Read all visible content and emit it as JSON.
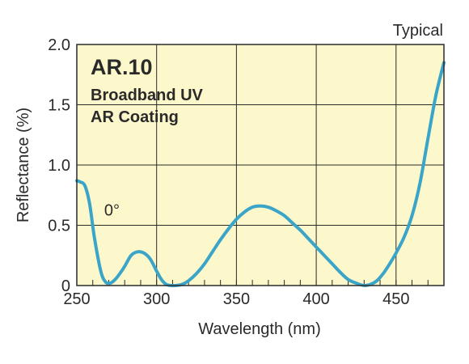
{
  "chart_data": {
    "type": "line",
    "corner_note": "Typical",
    "title": "AR.10",
    "subtitle_lines": [
      "Broadband UV",
      "AR Coating"
    ],
    "xlabel": "Wavelength (nm)",
    "ylabel": "Reflectance (%)",
    "xlim": [
      250,
      480
    ],
    "ylim": [
      0,
      2.0
    ],
    "x_ticks": [
      250,
      300,
      350,
      400,
      450
    ],
    "y_ticks": [
      0,
      0.5,
      1.0,
      1.5,
      2.0
    ],
    "x_tick_labels": [
      "250",
      "300",
      "350",
      "400",
      "450"
    ],
    "y_tick_labels": [
      "0",
      "0.5",
      "1.0",
      "1.5",
      "2.0"
    ],
    "grid": true,
    "annotation": {
      "text": "0°",
      "x": 272,
      "y": 0.58
    },
    "series": [
      {
        "x": [
          250,
          252,
          255,
          258,
          261,
          265,
          268,
          271,
          274,
          277,
          280,
          284,
          288,
          292,
          296,
          300,
          303,
          306,
          309,
          312,
          316,
          320,
          325,
          330,
          335,
          340,
          345,
          350,
          355,
          360,
          365,
          370,
          375,
          380,
          385,
          390,
          395,
          400,
          405,
          410,
          415,
          420,
          425,
          430,
          434,
          438,
          442,
          446,
          450,
          455,
          460,
          465,
          470,
          475,
          480
        ],
        "y": [
          0.87,
          0.86,
          0.83,
          0.68,
          0.4,
          0.12,
          0.03,
          0.02,
          0.05,
          0.1,
          0.16,
          0.25,
          0.28,
          0.27,
          0.22,
          0.12,
          0.05,
          0.01,
          0.0,
          0.0,
          0.01,
          0.04,
          0.1,
          0.18,
          0.28,
          0.38,
          0.47,
          0.55,
          0.61,
          0.65,
          0.66,
          0.65,
          0.62,
          0.58,
          0.52,
          0.46,
          0.39,
          0.32,
          0.25,
          0.18,
          0.11,
          0.05,
          0.02,
          0.0,
          0.01,
          0.04,
          0.1,
          0.18,
          0.27,
          0.4,
          0.58,
          0.85,
          1.22,
          1.58,
          1.85
        ],
        "color": "#3aa5c8"
      }
    ],
    "colors": {
      "plot_background": "#fdf8cb",
      "grid": "#2a2a2a",
      "text": "#2a2a2a",
      "line": "#3aa5c8"
    }
  }
}
